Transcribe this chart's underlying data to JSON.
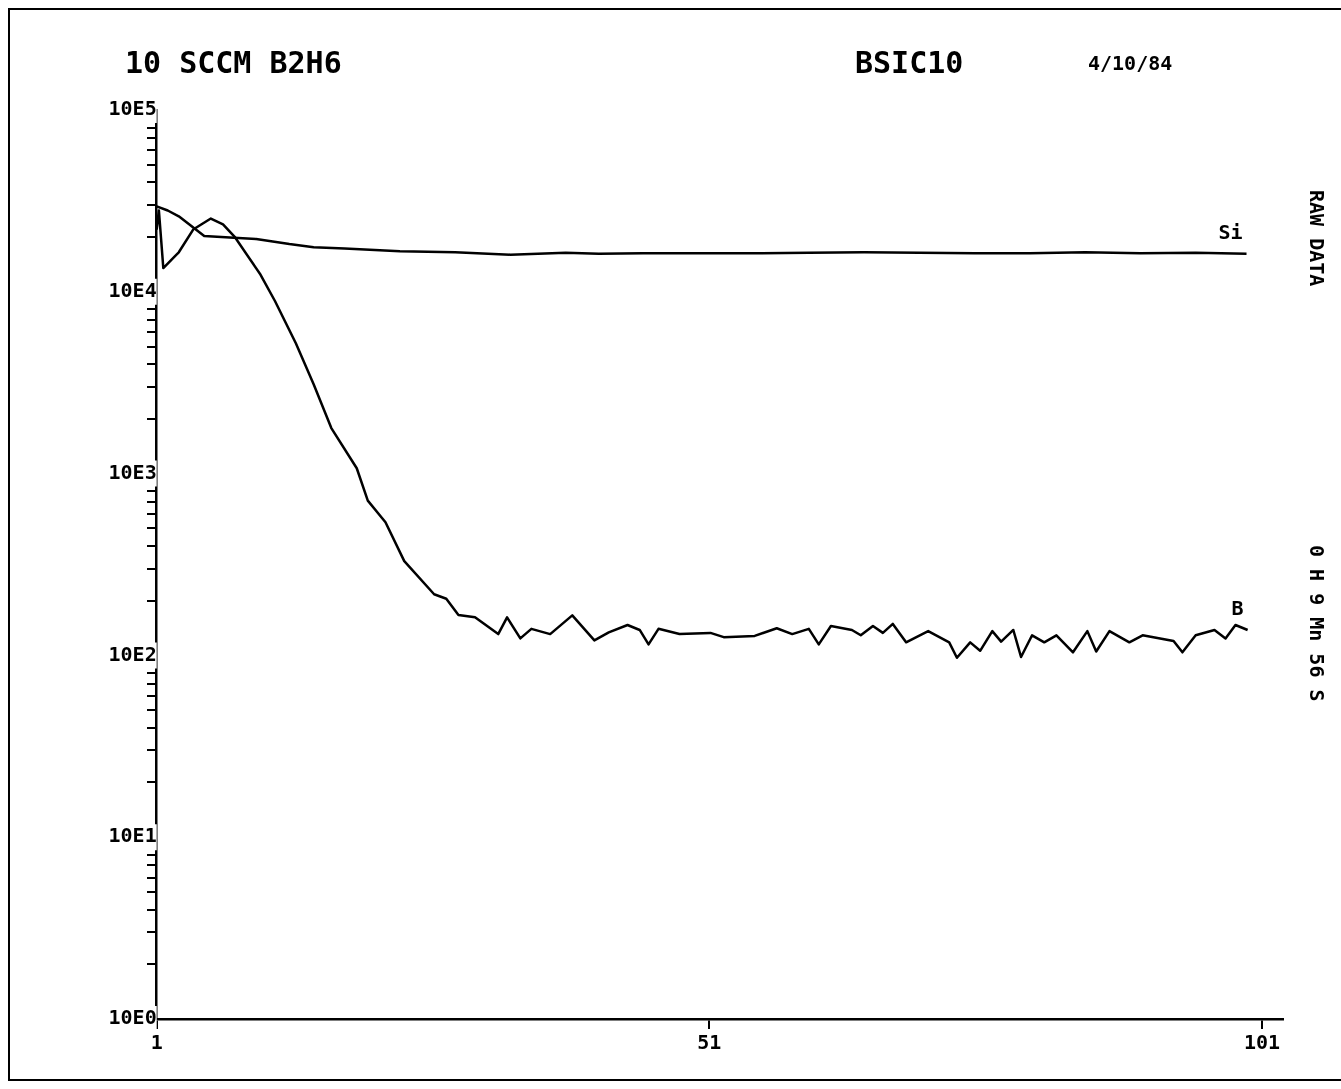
{
  "chart_data": {
    "type": "line",
    "title": "10 SCCM B2H6",
    "annotations": [
      "BSIC10",
      "4/10/84",
      "RAW DATA",
      "0 H 9 Mn 56 S"
    ],
    "xlim": [
      -2.5,
      102.9
    ],
    "xticks": [
      1,
      51,
      101
    ],
    "ylim": [
      10,
      1000000
    ],
    "log": true,
    "yticks": [
      {
        "value": 10,
        "label": "10E0"
      },
      {
        "value": 20,
        "label": null
      },
      {
        "value": 30,
        "label": null
      },
      {
        "value": 40,
        "label": null
      },
      {
        "value": 50,
        "label": null
      },
      {
        "value": 60,
        "label": null
      },
      {
        "value": 70,
        "label": null
      },
      {
        "value": 80,
        "label": null
      },
      {
        "value": 90,
        "label": null
      },
      {
        "value": 100,
        "label": "10E1"
      },
      {
        "value": 200,
        "label": null
      },
      {
        "value": 300,
        "label": null
      },
      {
        "value": 400,
        "label": null
      },
      {
        "value": 500,
        "label": null
      },
      {
        "value": 600,
        "label": null
      },
      {
        "value": 700,
        "label": null
      },
      {
        "value": 800,
        "label": null
      },
      {
        "value": 900,
        "label": null
      },
      {
        "value": 1000,
        "label": "10E2"
      },
      {
        "value": 2000,
        "label": null
      },
      {
        "value": 3000,
        "label": null
      },
      {
        "value": 4000,
        "label": null
      },
      {
        "value": 5000,
        "label": null
      },
      {
        "value": 6000,
        "label": null
      },
      {
        "value": 7000,
        "label": null
      },
      {
        "value": 8000,
        "label": null
      },
      {
        "value": 9000,
        "label": null
      },
      {
        "value": 10000,
        "label": "10E3"
      },
      {
        "value": 20000,
        "label": null
      },
      {
        "value": 30000,
        "label": null
      },
      {
        "value": 40000,
        "label": null
      },
      {
        "value": 50000,
        "label": null
      },
      {
        "value": 60000,
        "label": null
      },
      {
        "value": 70000,
        "label": null
      },
      {
        "value": 80000,
        "label": null
      },
      {
        "value": 90000,
        "label": null
      },
      {
        "value": 100000,
        "label": "10E4"
      },
      {
        "value": 200000,
        "label": null
      },
      {
        "value": 300000,
        "label": null
      },
      {
        "value": 400000,
        "label": null
      },
      {
        "value": 500000,
        "label": null
      },
      {
        "value": 600000,
        "label": null
      },
      {
        "value": 700000,
        "label": null
      },
      {
        "value": 800000,
        "label": null
      },
      {
        "value": 900000,
        "label": null
      },
      {
        "value": 1000000,
        "label": "10E5"
      }
    ],
    "grid": false,
    "legend": false,
    "marker": "none",
    "line_style": "solid",
    "series": [
      {
        "name": "Si",
        "color": "#000000",
        "x": [
          1,
          2,
          3,
          5.3,
          8,
          10,
          13,
          15.2,
          18,
          23,
          28,
          33,
          38,
          41,
          45,
          50,
          55,
          60,
          65,
          70,
          75,
          80,
          85,
          90,
          95,
          99.6
        ],
        "values": [
          295000,
          280000,
          260000,
          203000,
          198000,
          195000,
          183000,
          176000,
          173000,
          167000,
          165000,
          160000,
          164000,
          162000,
          163000,
          163000,
          163000,
          164000,
          165000,
          164000,
          163000,
          163000,
          165000,
          163000,
          164000,
          162000
        ]
      },
      {
        "name": "B",
        "color": "#000000",
        "x": [
          1,
          1.2,
          1.6,
          3,
          4.3,
          5.9,
          7,
          8.1,
          10.4,
          11.7,
          13.6,
          15.2,
          16.8,
          19.1,
          20.1,
          21.7,
          23.4,
          26.1,
          27.2,
          28.3,
          29.8,
          31.9,
          32.7,
          33.9,
          34.9,
          36.6,
          38.6,
          40.6,
          41.9,
          43.6,
          44.7,
          45.5,
          46.4,
          48.3,
          51.1,
          52.3,
          55.1,
          57.1,
          58.5,
          60,
          60.9,
          62,
          63.9,
          64.7,
          65.8,
          66.7,
          67.6,
          68.8,
          70.8,
          72.7,
          73.4,
          74.6,
          75.5,
          76.6,
          77.4,
          78.5,
          79.2,
          80.2,
          81.3,
          82.4,
          83.9,
          85.2,
          86,
          87.2,
          89,
          90.2,
          93,
          93.8,
          95,
          96.7,
          97.7,
          98.6,
          99.7
        ],
        "values": [
          220000,
          280000,
          135000,
          165000,
          220000,
          253000,
          235000,
          199000,
          124000,
          89000,
          52000,
          31000,
          17800,
          10700,
          7100,
          5400,
          3300,
          2170,
          2050,
          1670,
          1620,
          1310,
          1620,
          1240,
          1400,
          1310,
          1660,
          1210,
          1340,
          1470,
          1380,
          1150,
          1400,
          1310,
          1330,
          1260,
          1280,
          1410,
          1310,
          1400,
          1150,
          1450,
          1380,
          1290,
          1450,
          1330,
          1490,
          1180,
          1360,
          1180,
          970,
          1180,
          1060,
          1360,
          1190,
          1380,
          980,
          1290,
          1180,
          1290,
          1040,
          1360,
          1050,
          1360,
          1180,
          1290,
          1200,
          1040,
          1290,
          1380,
          1240,
          1470,
          1380
        ]
      }
    ]
  }
}
